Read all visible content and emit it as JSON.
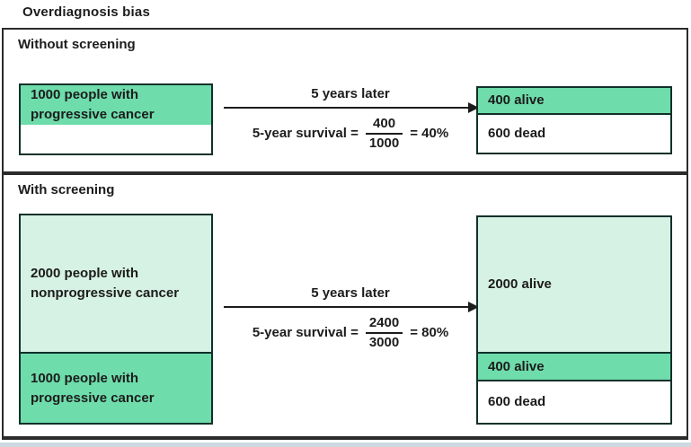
{
  "title": "Overdiagnosis bias",
  "colors": {
    "dark_green": "#6edcab",
    "light_green": "#d6f2e4",
    "box_border": "#11302a",
    "frame_border": "#2b2b2b",
    "text": "#1c1c1c",
    "bottom_strip": "#ccd9e1"
  },
  "panels": [
    {
      "label": "Without screening",
      "left_box": {
        "segments": [
          {
            "text": "1000 people with\nprogressive cancer",
            "shade": "dark-green"
          }
        ]
      },
      "arrow_label": "5 years later",
      "equation": {
        "lhs": "5-year survival =",
        "numerator": "400",
        "denominator": "1000",
        "result": "= 40%"
      },
      "right_box": {
        "segments": [
          {
            "text": "400 alive",
            "shade": "dark-green"
          },
          {
            "text": "600 dead",
            "shade": "white"
          }
        ]
      }
    },
    {
      "label": "With screening",
      "left_box": {
        "segments": [
          {
            "text": "2000 people with\nnonprogressive cancer",
            "shade": "light-green"
          },
          {
            "text": "1000 people with\nprogressive cancer",
            "shade": "dark-green"
          }
        ]
      },
      "arrow_label": "5 years later",
      "equation": {
        "lhs": "5-year survival =",
        "numerator": "2400",
        "denominator": "3000",
        "result": "= 80%"
      },
      "right_box": {
        "segments": [
          {
            "text": "2000 alive",
            "shade": "light-green"
          },
          {
            "text": "400 alive",
            "shade": "dark-green"
          },
          {
            "text": "600 dead",
            "shade": "white"
          }
        ]
      }
    }
  ]
}
